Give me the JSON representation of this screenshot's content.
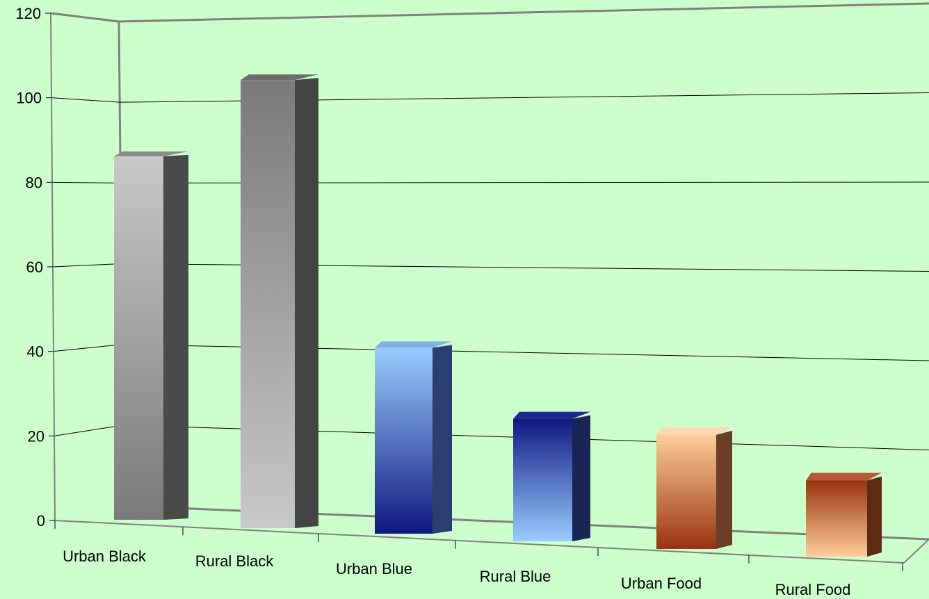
{
  "chart_data": {
    "type": "bar",
    "categories": [
      "Urban Black",
      "Rural Black",
      "Urban Blue",
      "Rural Blue",
      "Urban Food",
      "Rural Food"
    ],
    "values": [
      86,
      106,
      44,
      29,
      27,
      18
    ],
    "title": "",
    "xlabel": "",
    "ylabel": "",
    "ylim": [
      0,
      120
    ],
    "yticks": [
      0,
      20,
      40,
      60,
      80,
      100,
      120
    ],
    "grid": true,
    "legend": "none",
    "colors": {
      "background": "#ccffcc",
      "axis": "#808080",
      "gridline": "#000000",
      "bars": [
        {
          "front_top": "#c8c8c8",
          "front_bottom": "#7a7a7a",
          "side": "#4a4a4a",
          "top": "#8a8a8a"
        },
        {
          "front_top": "#7a7a7a",
          "front_bottom": "#c8c8c8",
          "side": "#444444",
          "top": "#6e6e6e"
        },
        {
          "front_top": "#99ccff",
          "front_bottom": "#101880",
          "side": "#2a3f70",
          "top": "#7fb0e8"
        },
        {
          "front_top": "#101880",
          "front_bottom": "#99ccff",
          "side": "#1a2555",
          "top": "#1e2a90"
        },
        {
          "front_top": "#ffcc99",
          "front_bottom": "#993311",
          "side": "#6b3f25",
          "top": "#ffd7b0"
        },
        {
          "front_top": "#993311",
          "front_bottom": "#ffcc99",
          "side": "#5e2a12",
          "top": "#b55a35"
        }
      ]
    }
  }
}
